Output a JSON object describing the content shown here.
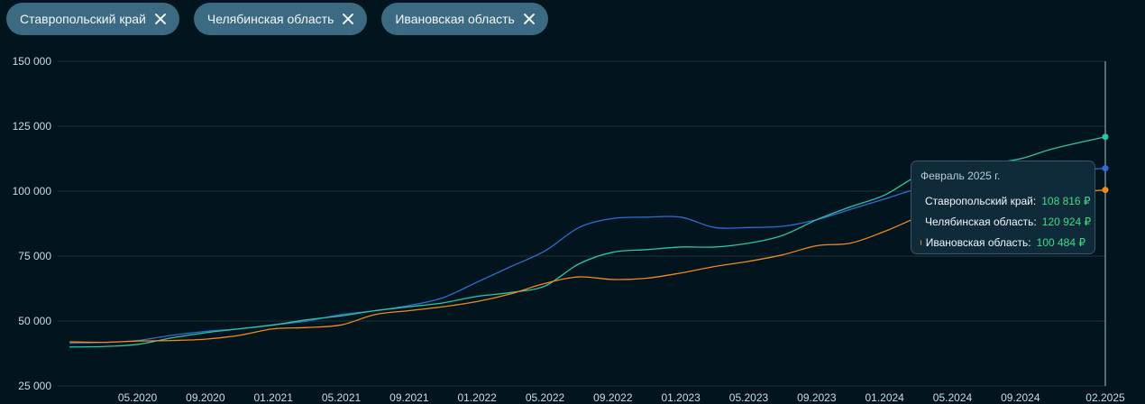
{
  "filters": [
    {
      "label": "Ставропольский край"
    },
    {
      "label": "Челябинская область"
    },
    {
      "label": "Ивановская область"
    }
  ],
  "colors": {
    "background": "#02141d",
    "grid": "#1d3440",
    "chip_bg": "#3d6a83",
    "series_blue": "#2d6fd1",
    "series_teal": "#2ec4a4",
    "series_orange": "#f08a1c",
    "value_green": "#3ddc84"
  },
  "tooltip": {
    "title": "Февраль 2025 г.",
    "rows": [
      {
        "name": "Ставропольский край:",
        "value": "108 816 ₽",
        "color": "#2d6fd1"
      },
      {
        "name": "Челябинская область:",
        "value": "120 924 ₽",
        "color": "#2ec4a4"
      },
      {
        "name": "Ивановская область:",
        "value": "100 484 ₽",
        "color": "#f08a1c"
      }
    ]
  },
  "chart_data": {
    "type": "line",
    "ylim": [
      25000,
      150000
    ],
    "y_ticks": [
      {
        "value": 150000,
        "label": "150 000"
      },
      {
        "value": 125000,
        "label": "125 000"
      },
      {
        "value": 100000,
        "label": "100 000"
      },
      {
        "value": 75000,
        "label": "75 000"
      },
      {
        "value": 50000,
        "label": "50 000"
      },
      {
        "value": 25000,
        "label": "25 000"
      }
    ],
    "x_ticks": [
      "05.2020",
      "09.2020",
      "01.2021",
      "05.2021",
      "09.2021",
      "01.2022",
      "05.2022",
      "09.2022",
      "01.2023",
      "05.2023",
      "09.2023",
      "01.2024",
      "05.2024",
      "09.2024",
      "02.2025"
    ],
    "x": [
      "01.2020",
      "03.2020",
      "05.2020",
      "07.2020",
      "09.2020",
      "11.2020",
      "01.2021",
      "03.2021",
      "05.2021",
      "07.2021",
      "09.2021",
      "11.2021",
      "01.2022",
      "03.2022",
      "05.2022",
      "07.2022",
      "09.2022",
      "11.2022",
      "01.2023",
      "03.2023",
      "05.2023",
      "07.2023",
      "09.2023",
      "11.2023",
      "01.2024",
      "03.2024",
      "05.2024",
      "07.2024",
      "09.2024",
      "11.2024",
      "02.2025"
    ],
    "series": [
      {
        "name": "Ставропольский край",
        "color": "#2d6fd1",
        "values": [
          41500,
          41800,
          42500,
          44500,
          46000,
          47000,
          48500,
          50000,
          52500,
          54000,
          56000,
          59000,
          65000,
          71000,
          77000,
          86000,
          89500,
          90000,
          90000,
          86000,
          86000,
          86500,
          89000,
          93000,
          97000,
          101000,
          103000,
          104500,
          106000,
          107500,
          108816
        ]
      },
      {
        "name": "Челябинская область",
        "color": "#2ec4a4",
        "values": [
          40000,
          40200,
          41000,
          43500,
          45500,
          47000,
          48500,
          50500,
          52000,
          54000,
          55500,
          57000,
          59500,
          61000,
          63500,
          72000,
          76500,
          77500,
          78500,
          78500,
          80000,
          83000,
          89000,
          94000,
          98500,
          106000,
          109000,
          110500,
          112500,
          116500,
          120924
        ]
      },
      {
        "name": "Ивановская область",
        "color": "#f08a1c",
        "values": [
          42000,
          41800,
          42300,
          42500,
          43000,
          44500,
          47000,
          47500,
          48500,
          52500,
          54000,
          55500,
          57500,
          60500,
          64500,
          67000,
          66000,
          66500,
          68500,
          71000,
          73000,
          75500,
          79000,
          80000,
          84500,
          90000,
          94000,
          95500,
          97500,
          99000,
          100484
        ]
      }
    ]
  }
}
